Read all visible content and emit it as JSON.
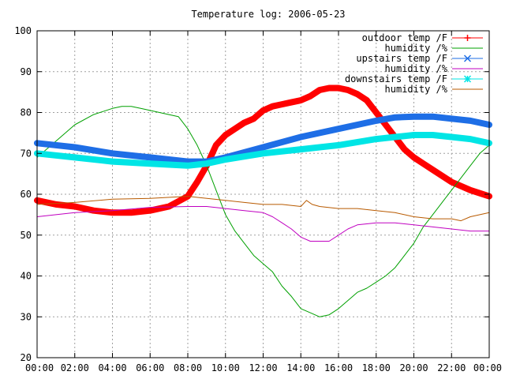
{
  "chart_data": {
    "type": "line",
    "title": "Temperature log: 2006-05-23",
    "xlabel": "",
    "ylabel": "",
    "xlim": [
      0,
      24
    ],
    "ylim": [
      20,
      100
    ],
    "y_ticks": [
      20,
      30,
      40,
      50,
      60,
      70,
      80,
      90,
      100
    ],
    "x_ticks": [
      0,
      2,
      4,
      6,
      8,
      10,
      12,
      14,
      16,
      18,
      20,
      22,
      24
    ],
    "x_tick_labels": [
      "00:00",
      "02:00",
      "04:00",
      "06:00",
      "08:00",
      "10:00",
      "12:00",
      "14:00",
      "16:00",
      "18:00",
      "20:00",
      "22:00",
      "00:00"
    ],
    "grid": true,
    "legend_position": "top-right",
    "series": [
      {
        "name": "outdoor temp /F",
        "color": "#ff0000",
        "marker": "plus",
        "thick": true,
        "x": [
          0,
          1,
          2,
          3,
          4,
          5,
          6,
          7,
          8,
          8.5,
          9,
          9.5,
          10,
          10.5,
          11,
          11.5,
          12,
          12.5,
          13,
          13.5,
          14,
          14.5,
          15,
          15.5,
          16,
          16.5,
          17,
          17.5,
          18,
          18.5,
          19,
          19.5,
          20,
          20.5,
          21,
          22,
          23,
          24
        ],
        "y": [
          58.5,
          57.5,
          57,
          56,
          55.5,
          55.5,
          56,
          57,
          59.5,
          63,
          67,
          72,
          74.5,
          76,
          77.5,
          78.5,
          80.5,
          81.5,
          82,
          82.5,
          83,
          84,
          85.5,
          86,
          86,
          85.5,
          84.5,
          83,
          80,
          77,
          74,
          71,
          69,
          67.5,
          66,
          63,
          61,
          59.5
        ]
      },
      {
        "name": "humidity /%",
        "color": "#00a000",
        "marker": "none",
        "thick": false,
        "x": [
          0,
          1,
          2,
          3,
          4,
          4.5,
          5,
          5.5,
          6,
          6.5,
          7,
          7.5,
          8,
          8.5,
          9,
          9.5,
          10,
          10.5,
          11,
          11.5,
          12,
          12.5,
          13,
          13.5,
          14,
          14.5,
          15,
          15.5,
          16,
          16.5,
          17,
          17.5,
          18,
          18.5,
          19,
          19.5,
          20,
          20.5,
          21,
          21.5,
          22,
          22.5,
          23,
          23.5,
          24
        ],
        "y": [
          69,
          73,
          77,
          79.5,
          81,
          81.5,
          81.5,
          81,
          80.5,
          80,
          79.5,
          79,
          76,
          72,
          67,
          61,
          55,
          51,
          48,
          45,
          43,
          41,
          37.5,
          35,
          32,
          31,
          30,
          30.5,
          32,
          34,
          36,
          37,
          38.5,
          40,
          42,
          45,
          48,
          52,
          55,
          58,
          61,
          64,
          67,
          70,
          72
        ]
      },
      {
        "name": "upstairs temp /F",
        "color": "#1e6ee6",
        "marker": "cross",
        "thick": true,
        "x": [
          0,
          2,
          4,
          6,
          8,
          9,
          10,
          12,
          14,
          16,
          18,
          19,
          20,
          21,
          22,
          23,
          24
        ],
        "y": [
          72.5,
          71.5,
          70,
          69,
          68,
          68,
          69,
          71.5,
          74,
          76,
          78,
          78.8,
          79,
          79,
          78.5,
          78,
          77
        ]
      },
      {
        "name": "humidity /%",
        "color": "#c000c0",
        "marker": "none",
        "thick": false,
        "x": [
          0,
          2,
          4,
          6,
          8,
          9,
          10,
          11,
          12,
          12.5,
          13,
          13.5,
          14,
          14.5,
          15,
          15.5,
          16,
          16.5,
          17,
          18,
          19,
          20,
          21,
          22,
          23,
          24
        ],
        "y": [
          54.5,
          55.5,
          56,
          56.8,
          57,
          57,
          56.5,
          56,
          55.5,
          54.5,
          53,
          51.5,
          49.5,
          48.5,
          48.5,
          48.5,
          50,
          51.5,
          52.5,
          53,
          53,
          52.5,
          52,
          51.5,
          51,
          51
        ]
      },
      {
        "name": "downstairs temp /F",
        "color": "#00e5e5",
        "marker": "star",
        "thick": true,
        "x": [
          0,
          2,
          4,
          6,
          8,
          9,
          10,
          12,
          14,
          16,
          18,
          19,
          20,
          21,
          22,
          23,
          24
        ],
        "y": [
          70,
          69,
          68,
          67.5,
          67,
          67.5,
          68.5,
          70,
          71,
          72,
          73.5,
          74,
          74.5,
          74.5,
          74,
          73.5,
          72.5
        ]
      },
      {
        "name": "humidity /%",
        "color": "#b85a00",
        "marker": "none",
        "thick": false,
        "x": [
          0,
          2,
          4,
          6,
          8,
          10,
          11,
          12,
          13,
          14,
          14.3,
          14.6,
          15,
          16,
          17,
          18,
          19,
          20,
          21,
          22,
          22.5,
          23,
          24
        ],
        "y": [
          57.5,
          58,
          58.8,
          59,
          59.5,
          58.5,
          58,
          57.5,
          57.5,
          57,
          58.5,
          57.5,
          57,
          56.5,
          56.5,
          56,
          55.5,
          54.5,
          54,
          54,
          53.5,
          54.5,
          55.5
        ]
      }
    ]
  }
}
